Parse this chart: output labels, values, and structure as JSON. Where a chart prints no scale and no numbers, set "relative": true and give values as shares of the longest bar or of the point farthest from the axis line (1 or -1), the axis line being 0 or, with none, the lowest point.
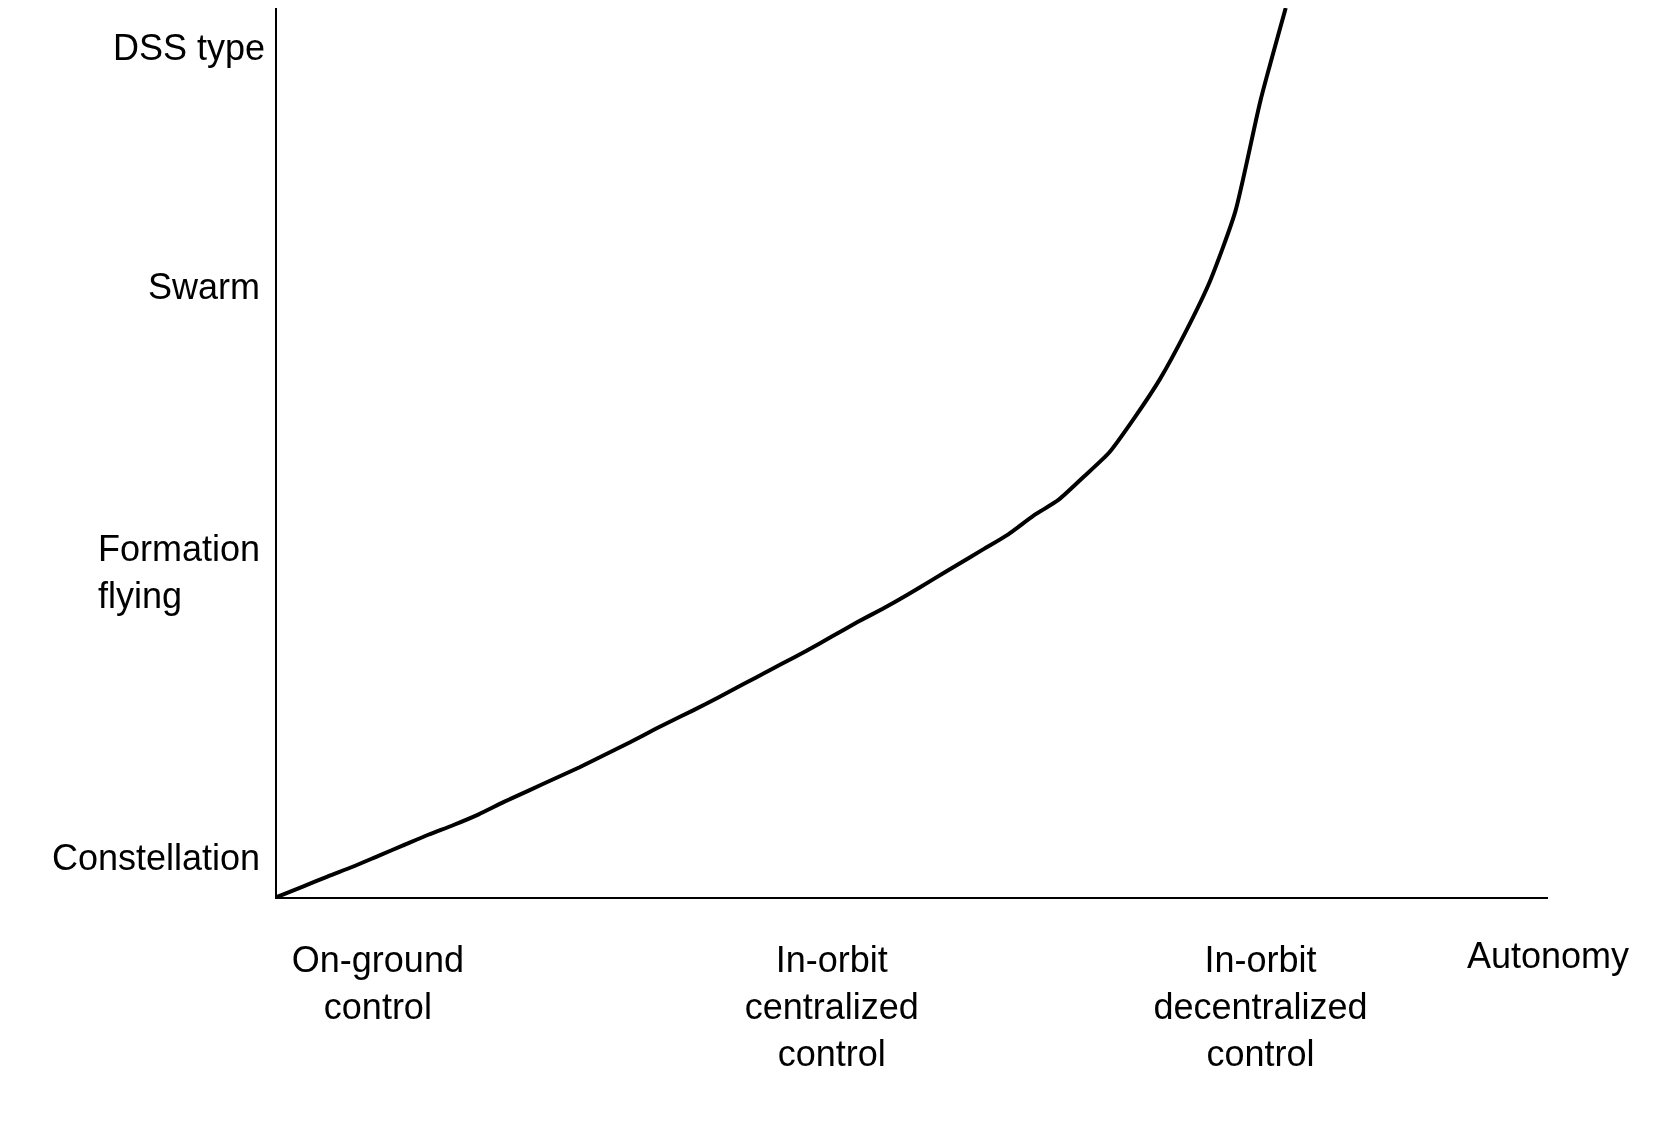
{
  "chart_data": {
    "type": "line",
    "relative": true,
    "xlabel": "Autonomy",
    "ylabel": "DSS type",
    "categories": [
      null,
      null,
      null,
      null,
      "On-ground\ncontrol",
      null,
      null,
      null,
      null,
      null,
      null,
      null,
      null,
      null,
      null,
      null,
      null,
      null,
      null,
      null,
      null,
      null,
      "In-orbit\ncentralized\ncontrol",
      null,
      null,
      null,
      null,
      null,
      null,
      null,
      null,
      null,
      null,
      null,
      null,
      null,
      null,
      null,
      null,
      "In-orbit\ndecentralized\ncontrol",
      null
    ],
    "series": [
      {
        "color": "#000000",
        "values": [
          0,
          0.0115,
          0.023,
          0.034,
          0.046,
          0.058,
          0.07,
          0.081,
          0.093,
          0.107,
          0.12,
          0.133,
          0.146,
          0.16,
          0.174,
          0.189,
          0.203,
          0.217,
          0.232,
          0.247,
          0.262,
          0.277,
          0.293,
          0.309,
          0.324,
          0.34,
          0.357,
          0.374,
          0.391,
          0.408,
          0.429,
          0.447,
          0.473,
          0.5,
          0.539,
          0.582,
          0.634,
          0.693,
          0.771,
          0.896,
          1.0
        ]
      }
    ],
    "annotations": [
      "Constellation",
      "Formation\nflying",
      "Swarm"
    ],
    "marker": "none",
    "line_style": "solid"
  }
}
